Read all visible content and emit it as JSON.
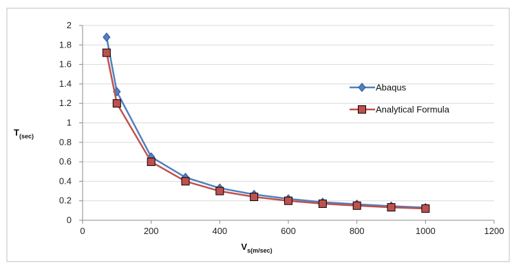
{
  "chart_data": {
    "type": "line",
    "xlabel": {
      "main": "V",
      "sub": "s(m/sec)"
    },
    "ylabel": {
      "main": "T",
      "sub": "(sec)"
    },
    "xlim": [
      0,
      1200
    ],
    "ylim": [
      0,
      2
    ],
    "xticks": [
      0,
      200,
      400,
      600,
      800,
      1000,
      1200
    ],
    "yticks": [
      0,
      0.2,
      0.4,
      0.6,
      0.8,
      1,
      1.2,
      1.4,
      1.6,
      1.8,
      2
    ],
    "grid": "horizontal",
    "legend_position": "right",
    "series": [
      {
        "name": "Abaqus",
        "color": "#4F81BD",
        "marker": "diamond",
        "points": [
          [
            70,
            1.88
          ],
          [
            100,
            1.32
          ],
          [
            200,
            0.65
          ],
          [
            300,
            0.44
          ],
          [
            400,
            0.33
          ],
          [
            500,
            0.265
          ],
          [
            600,
            0.22
          ],
          [
            700,
            0.185
          ],
          [
            800,
            0.165
          ],
          [
            900,
            0.145
          ],
          [
            1000,
            0.13
          ]
        ]
      },
      {
        "name": "Analytical Formula",
        "color": "#C0504D",
        "marker": "square",
        "points": [
          [
            70,
            1.72
          ],
          [
            100,
            1.2
          ],
          [
            200,
            0.6
          ],
          [
            300,
            0.4
          ],
          [
            400,
            0.3
          ],
          [
            500,
            0.24
          ],
          [
            600,
            0.2
          ],
          [
            700,
            0.17
          ],
          [
            800,
            0.15
          ],
          [
            900,
            0.133
          ],
          [
            1000,
            0.12
          ]
        ]
      }
    ]
  }
}
